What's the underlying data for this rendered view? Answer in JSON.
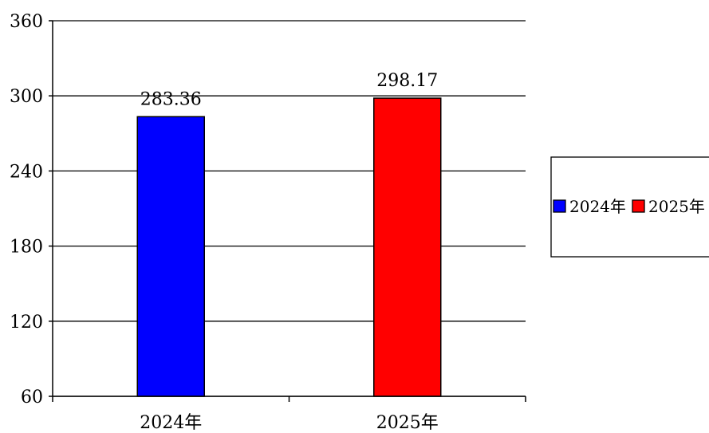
{
  "chart_data": {
    "type": "bar",
    "categories": [
      "2024年",
      "2025年"
    ],
    "values": [
      283.36,
      298.17
    ],
    "value_labels": [
      "283.36",
      "298.17"
    ],
    "colors": [
      "#0000ff",
      "#ff0000"
    ],
    "ylim": [
      60,
      360
    ],
    "yticks": [
      "60",
      "120",
      "180",
      "240",
      "300",
      "360"
    ],
    "grid": true,
    "legend": {
      "position": "right",
      "entries": [
        "2024年",
        "2025年"
      ]
    },
    "title": "",
    "xlabel": "",
    "ylabel": ""
  }
}
